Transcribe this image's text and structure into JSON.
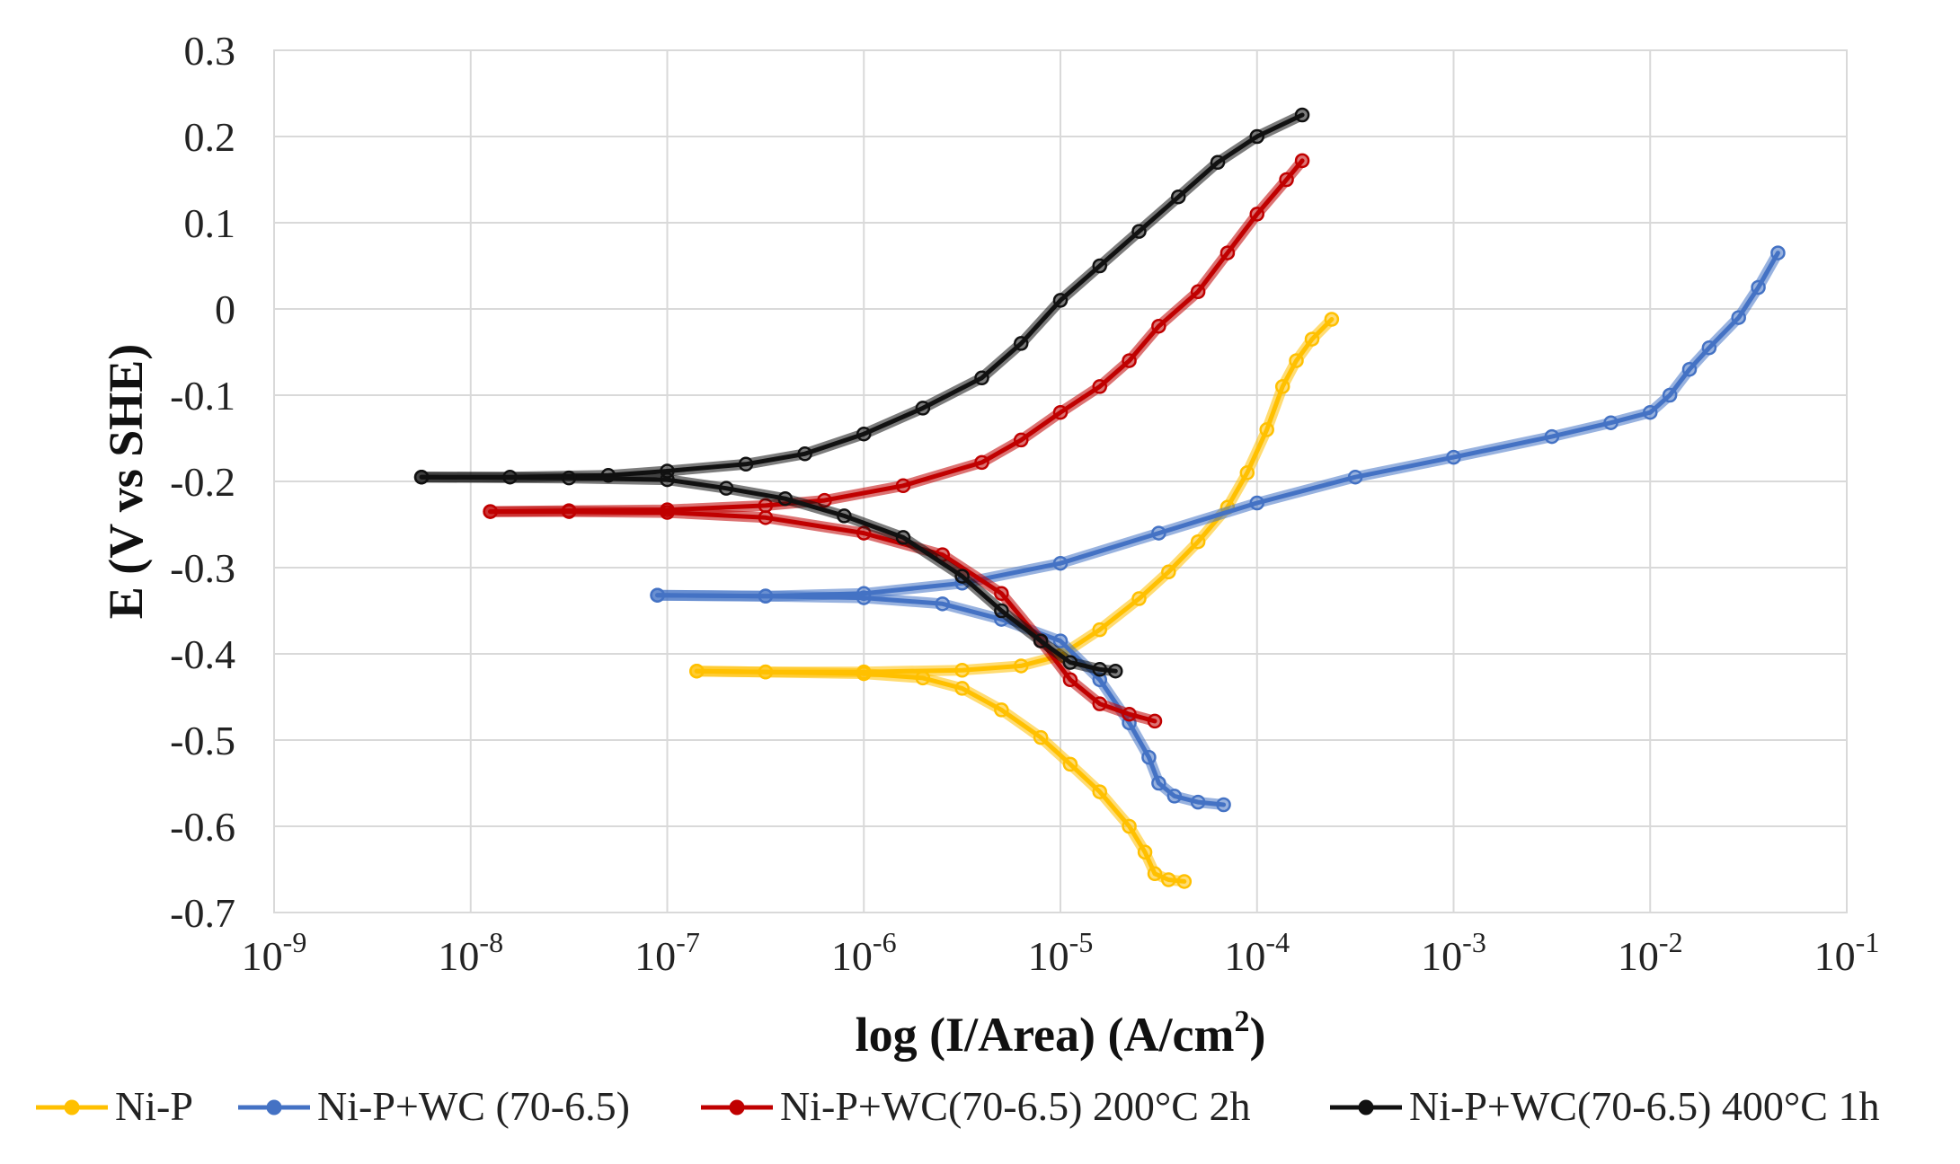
{
  "chart_data": {
    "type": "line",
    "title": "",
    "xlabel": "log (I/Area) (A/cm²)",
    "xlabel_main": "log (I/Area) (A/cm",
    "xlabel_sup": "2",
    "xlabel_close": ")",
    "ylabel": "E (V vs SHE)",
    "xscale": "log",
    "xlim_exp": [
      -9,
      -1
    ],
    "ylim": [
      -0.7,
      0.3
    ],
    "grid": true,
    "legend_position": "bottom",
    "x_ticks": [
      {
        "base": "10",
        "exp": "-9"
      },
      {
        "base": "10",
        "exp": "-8"
      },
      {
        "base": "10",
        "exp": "-7"
      },
      {
        "base": "10",
        "exp": "-6"
      },
      {
        "base": "10",
        "exp": "-5"
      },
      {
        "base": "10",
        "exp": "-4"
      },
      {
        "base": "10",
        "exp": "-3"
      },
      {
        "base": "10",
        "exp": "-2"
      },
      {
        "base": "10",
        "exp": "-1"
      }
    ],
    "y_ticks": [
      "0.3",
      "0.2",
      "0.1",
      "0",
      "-0.1",
      "-0.2",
      "-0.3",
      "-0.4",
      "-0.5",
      "-0.6",
      "-0.7"
    ],
    "series": [
      {
        "name": "Ni-P",
        "color": "#FFC000",
        "anodic": [
          [
            -6.85,
            -0.42
          ],
          [
            -6.5,
            -0.421
          ],
          [
            -6.0,
            -0.421
          ],
          [
            -5.5,
            -0.419
          ],
          [
            -5.2,
            -0.414
          ],
          [
            -5.0,
            -0.402
          ],
          [
            -4.8,
            -0.372
          ],
          [
            -4.6,
            -0.336
          ],
          [
            -4.45,
            -0.305
          ],
          [
            -4.3,
            -0.27
          ],
          [
            -4.15,
            -0.23
          ],
          [
            -4.05,
            -0.19
          ],
          [
            -3.95,
            -0.14
          ],
          [
            -3.87,
            -0.09
          ],
          [
            -3.8,
            -0.06
          ],
          [
            -3.72,
            -0.035
          ],
          [
            -3.62,
            -0.012
          ]
        ],
        "cathodic": [
          [
            -6.85,
            -0.42
          ],
          [
            -6.5,
            -0.421
          ],
          [
            -6.0,
            -0.423
          ],
          [
            -5.7,
            -0.428
          ],
          [
            -5.5,
            -0.44
          ],
          [
            -5.3,
            -0.465
          ],
          [
            -5.1,
            -0.497
          ],
          [
            -4.95,
            -0.528
          ],
          [
            -4.8,
            -0.56
          ],
          [
            -4.65,
            -0.6
          ],
          [
            -4.57,
            -0.63
          ],
          [
            -4.52,
            -0.655
          ],
          [
            -4.45,
            -0.662
          ],
          [
            -4.37,
            -0.664
          ]
        ]
      },
      {
        "name": "Ni-P+WC (70-6.5)",
        "color": "#4472C4",
        "anodic": [
          [
            -7.05,
            -0.332
          ],
          [
            -6.5,
            -0.333
          ],
          [
            -6.0,
            -0.33
          ],
          [
            -5.5,
            -0.318
          ],
          [
            -5.0,
            -0.295
          ],
          [
            -4.5,
            -0.26
          ],
          [
            -4.0,
            -0.225
          ],
          [
            -3.5,
            -0.195
          ],
          [
            -3.0,
            -0.172
          ],
          [
            -2.5,
            -0.148
          ],
          [
            -2.2,
            -0.132
          ],
          [
            -2.0,
            -0.12
          ],
          [
            -1.9,
            -0.1
          ],
          [
            -1.8,
            -0.07
          ],
          [
            -1.7,
            -0.045
          ],
          [
            -1.55,
            -0.01
          ],
          [
            -1.45,
            0.025
          ],
          [
            -1.35,
            0.065
          ]
        ],
        "cathodic": [
          [
            -7.05,
            -0.332
          ],
          [
            -6.5,
            -0.333
          ],
          [
            -6.0,
            -0.335
          ],
          [
            -5.6,
            -0.342
          ],
          [
            -5.3,
            -0.36
          ],
          [
            -5.0,
            -0.385
          ],
          [
            -4.8,
            -0.43
          ],
          [
            -4.65,
            -0.48
          ],
          [
            -4.55,
            -0.52
          ],
          [
            -4.5,
            -0.55
          ],
          [
            -4.42,
            -0.565
          ],
          [
            -4.3,
            -0.572
          ],
          [
            -4.17,
            -0.575
          ]
        ]
      },
      {
        "name": "Ni-P+WC(70-6.5) 200°C 2h",
        "color": "#C00000",
        "anodic": [
          [
            -7.9,
            -0.235
          ],
          [
            -7.5,
            -0.234
          ],
          [
            -7.0,
            -0.233
          ],
          [
            -6.5,
            -0.228
          ],
          [
            -6.2,
            -0.222
          ],
          [
            -5.8,
            -0.205
          ],
          [
            -5.4,
            -0.178
          ],
          [
            -5.2,
            -0.152
          ],
          [
            -5.0,
            -0.12
          ],
          [
            -4.8,
            -0.09
          ],
          [
            -4.65,
            -0.06
          ],
          [
            -4.5,
            -0.02
          ],
          [
            -4.3,
            0.02
          ],
          [
            -4.15,
            0.065
          ],
          [
            -4.0,
            0.11
          ],
          [
            -3.85,
            0.15
          ],
          [
            -3.77,
            0.172
          ]
        ],
        "cathodic": [
          [
            -7.9,
            -0.235
          ],
          [
            -7.5,
            -0.235
          ],
          [
            -7.0,
            -0.236
          ],
          [
            -6.5,
            -0.242
          ],
          [
            -6.0,
            -0.26
          ],
          [
            -5.6,
            -0.285
          ],
          [
            -5.3,
            -0.33
          ],
          [
            -5.1,
            -0.385
          ],
          [
            -4.95,
            -0.43
          ],
          [
            -4.8,
            -0.458
          ],
          [
            -4.65,
            -0.47
          ],
          [
            -4.52,
            -0.478
          ]
        ]
      },
      {
        "name": "Ni-P+WC(70-6.5) 400°C 1h",
        "color": "#111111",
        "anodic": [
          [
            -8.25,
            -0.195
          ],
          [
            -7.8,
            -0.195
          ],
          [
            -7.3,
            -0.193
          ],
          [
            -7.0,
            -0.188
          ],
          [
            -6.6,
            -0.18
          ],
          [
            -6.3,
            -0.168
          ],
          [
            -6.0,
            -0.145
          ],
          [
            -5.7,
            -0.115
          ],
          [
            -5.4,
            -0.08
          ],
          [
            -5.2,
            -0.04
          ],
          [
            -5.0,
            0.01
          ],
          [
            -4.8,
            0.05
          ],
          [
            -4.6,
            0.09
          ],
          [
            -4.4,
            0.13
          ],
          [
            -4.2,
            0.17
          ],
          [
            -4.0,
            0.2
          ],
          [
            -3.77,
            0.225
          ]
        ],
        "cathodic": [
          [
            -8.25,
            -0.195
          ],
          [
            -7.5,
            -0.196
          ],
          [
            -7.0,
            -0.198
          ],
          [
            -6.7,
            -0.208
          ],
          [
            -6.4,
            -0.22
          ],
          [
            -6.1,
            -0.24
          ],
          [
            -5.8,
            -0.265
          ],
          [
            -5.5,
            -0.31
          ],
          [
            -5.3,
            -0.35
          ],
          [
            -5.1,
            -0.385
          ],
          [
            -4.95,
            -0.41
          ],
          [
            -4.8,
            -0.418
          ],
          [
            -4.72,
            -0.42
          ]
        ]
      }
    ]
  }
}
